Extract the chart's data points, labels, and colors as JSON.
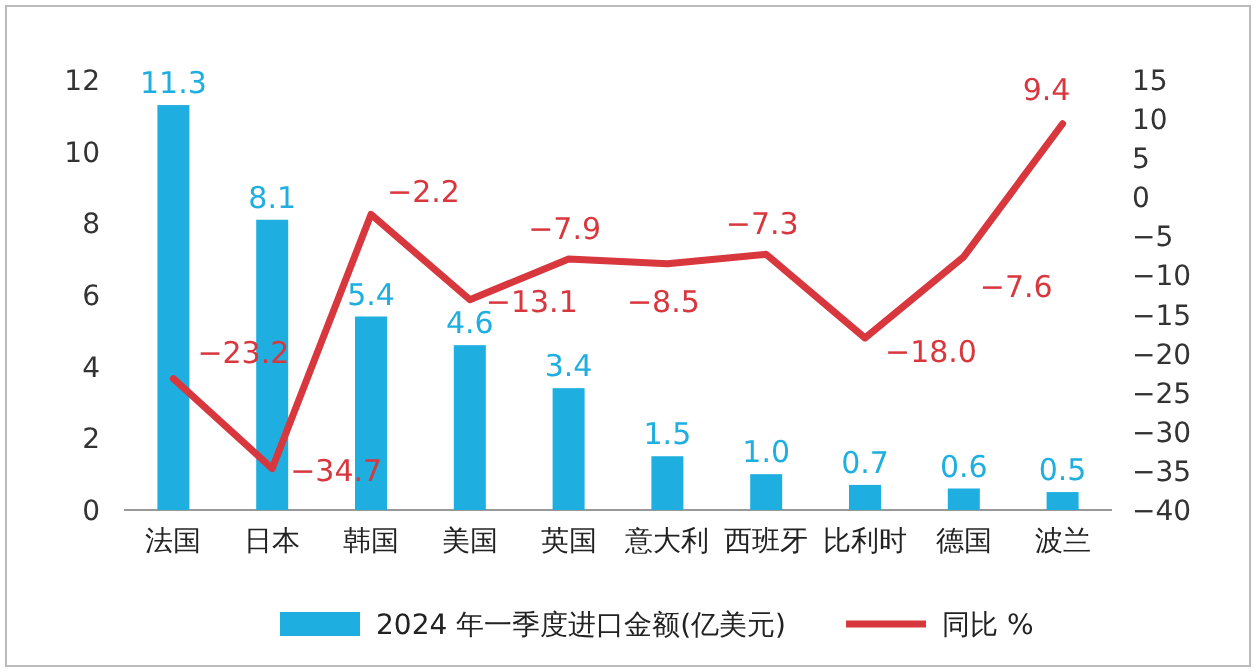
{
  "chart_data": {
    "type": "bar",
    "categories": [
      "法国",
      "日本",
      "韩国",
      "美国",
      "英国",
      "意大利",
      "西班牙",
      "比利时",
      "德国",
      "波兰"
    ],
    "series": [
      {
        "name": "2024 年一季度进口金额(亿美元)",
        "color": "#1eaee0",
        "values": [
          11.3,
          8.1,
          5.4,
          4.6,
          3.4,
          1.5,
          1.0,
          0.7,
          0.6,
          0.5
        ],
        "value_labels": [
          "11.3",
          "8.1",
          "5.4",
          "4.6",
          "3.4",
          "1.5",
          "1.0",
          "0.7",
          "0.6",
          "0.5"
        ]
      },
      {
        "name": "同比 %",
        "type": "line",
        "axis": "y2",
        "color": "#d8373e",
        "values": [
          -23.2,
          -34.7,
          -2.2,
          -13.1,
          -7.9,
          -8.5,
          -7.3,
          -18.0,
          -7.6,
          9.4
        ],
        "value_labels": [
          "−23.2",
          "−34.7",
          "−2.2",
          "−13.1",
          "−7.9",
          "−8.5",
          "−7.3",
          "−18.0",
          "−7.6",
          "9.4"
        ]
      }
    ],
    "ylim": [
      0,
      12
    ],
    "yticks": [
      0,
      2,
      4,
      6,
      8,
      10,
      12
    ],
    "y2lim": [
      -40,
      15
    ],
    "y2ticks": [
      -40,
      -35,
      -30,
      -25,
      -20,
      -15,
      -10,
      -5,
      0,
      5,
      10,
      15
    ],
    "legend": "bottom",
    "grid": false,
    "marker": "none"
  }
}
